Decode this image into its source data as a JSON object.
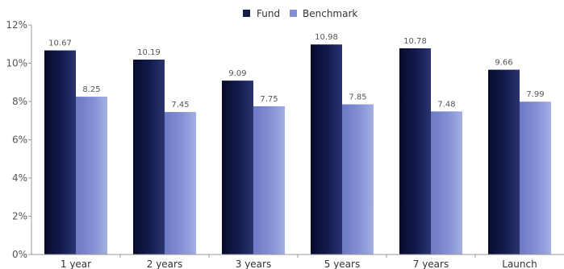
{
  "chart_data": {
    "type": "bar",
    "categories": [
      "1 year",
      "2 years",
      "3 years",
      "5 years",
      "7 years",
      "Launch"
    ],
    "series": [
      {
        "name": "Fund",
        "values": [
          10.67,
          10.19,
          9.09,
          10.98,
          10.78,
          9.66
        ],
        "labels": [
          "10.67",
          "10.19",
          "9.09",
          "10.98",
          "10.78",
          "9.66"
        ],
        "color": "#141c4e"
      },
      {
        "name": "Benchmark",
        "values": [
          8.25,
          7.45,
          7.75,
          7.85,
          7.48,
          7.99
        ],
        "labels": [
          "8.25",
          "7.45",
          "7.75",
          "7.85",
          "7.48",
          "7.99"
        ],
        "color": "#8390d4"
      }
    ],
    "yticks": [
      "0%",
      "2%",
      "4%",
      "6%",
      "8%",
      "10%",
      "12%"
    ],
    "ylim": [
      0,
      12
    ],
    "legend_position": "top-center",
    "grid": false
  }
}
